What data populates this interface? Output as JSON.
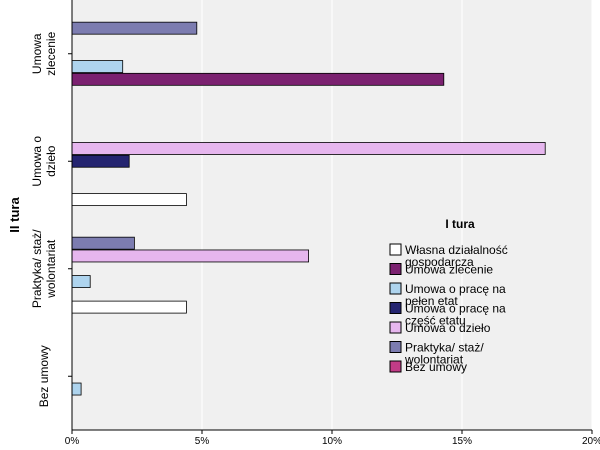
{
  "chart_data": {
    "type": "bar",
    "orientation": "horizontal",
    "ylabel": "II tura",
    "xlim": [
      0,
      20
    ],
    "x_ticks": [
      "0%",
      "5%",
      "10%",
      "15%",
      "20%"
    ],
    "grid": true,
    "legend_title": "I tura",
    "legend_position": "right",
    "categories": [
      [
        "Umowa",
        "zlecenie"
      ],
      [
        "Umowa o",
        "dzieło"
      ],
      [
        "Praktyka/ staż/",
        "wolontariat"
      ],
      [
        "Bez umowy"
      ]
    ],
    "series": [
      {
        "name": [
          "Własna działalność",
          "gospodarcza"
        ],
        "color": "#ffffff",
        "values": [
          0,
          4.4,
          4.4,
          0
        ]
      },
      {
        "name": [
          "Umowa zlecenie"
        ],
        "color": "#7b2170",
        "values": [
          14.3,
          0,
          0,
          0
        ]
      },
      {
        "name": [
          "Umowa o pracę na",
          "pełen etat"
        ],
        "color": "#aed4ee",
        "values": [
          1.95,
          0,
          0.7,
          0.35
        ]
      },
      {
        "name": [
          "Umowa o pracę na",
          "część etatu"
        ],
        "color": "#242470",
        "values": [
          0,
          2.2,
          0,
          0
        ]
      },
      {
        "name": [
          "Umowa o dzieło"
        ],
        "color": "#e6b6ee",
        "values": [
          0,
          18.2,
          9.1,
          0
        ]
      },
      {
        "name": [
          "Praktyka/ staż/",
          "wolontariat"
        ],
        "color": "#7c7cb0",
        "values": [
          4.8,
          0,
          2.4,
          0
        ]
      },
      {
        "name": [
          "Bez umowy"
        ],
        "color": "#c23c87",
        "values": [
          0,
          0,
          0,
          0
        ]
      }
    ]
  }
}
